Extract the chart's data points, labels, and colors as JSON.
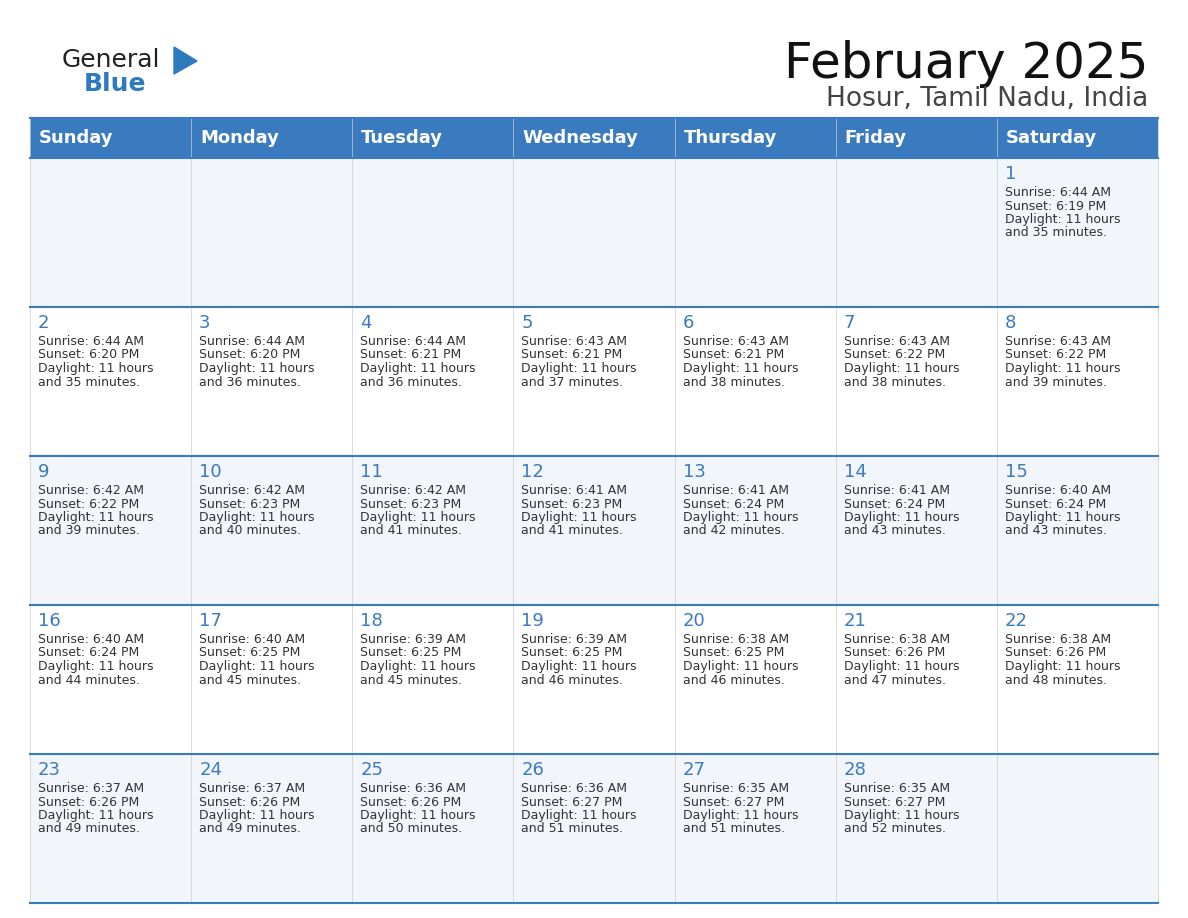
{
  "title": "February 2025",
  "subtitle": "Hosur, Tamil Nadu, India",
  "days_of_week": [
    "Sunday",
    "Monday",
    "Tuesday",
    "Wednesday",
    "Thursday",
    "Friday",
    "Saturday"
  ],
  "header_bg": "#3a7abf",
  "header_text_color": "#ffffff",
  "border_color": "#3a7abf",
  "day_number_color": "#3a7abf",
  "text_color": "#333333",
  "logo_general_color": "#222222",
  "logo_blue_color": "#2e7abf",
  "calendar_data": [
    [
      null,
      null,
      null,
      null,
      null,
      null,
      {
        "day": 1,
        "sunrise": "6:44 AM",
        "sunset": "6:19 PM",
        "daylight_line1": "11 hours",
        "daylight_line2": "and 35 minutes."
      }
    ],
    [
      {
        "day": 2,
        "sunrise": "6:44 AM",
        "sunset": "6:20 PM",
        "daylight_line1": "11 hours",
        "daylight_line2": "and 35 minutes."
      },
      {
        "day": 3,
        "sunrise": "6:44 AM",
        "sunset": "6:20 PM",
        "daylight_line1": "11 hours",
        "daylight_line2": "and 36 minutes."
      },
      {
        "day": 4,
        "sunrise": "6:44 AM",
        "sunset": "6:21 PM",
        "daylight_line1": "11 hours",
        "daylight_line2": "and 36 minutes."
      },
      {
        "day": 5,
        "sunrise": "6:43 AM",
        "sunset": "6:21 PM",
        "daylight_line1": "11 hours",
        "daylight_line2": "and 37 minutes."
      },
      {
        "day": 6,
        "sunrise": "6:43 AM",
        "sunset": "6:21 PM",
        "daylight_line1": "11 hours",
        "daylight_line2": "and 38 minutes."
      },
      {
        "day": 7,
        "sunrise": "6:43 AM",
        "sunset": "6:22 PM",
        "daylight_line1": "11 hours",
        "daylight_line2": "and 38 minutes."
      },
      {
        "day": 8,
        "sunrise": "6:43 AM",
        "sunset": "6:22 PM",
        "daylight_line1": "11 hours",
        "daylight_line2": "and 39 minutes."
      }
    ],
    [
      {
        "day": 9,
        "sunrise": "6:42 AM",
        "sunset": "6:22 PM",
        "daylight_line1": "11 hours",
        "daylight_line2": "and 39 minutes."
      },
      {
        "day": 10,
        "sunrise": "6:42 AM",
        "sunset": "6:23 PM",
        "daylight_line1": "11 hours",
        "daylight_line2": "and 40 minutes."
      },
      {
        "day": 11,
        "sunrise": "6:42 AM",
        "sunset": "6:23 PM",
        "daylight_line1": "11 hours",
        "daylight_line2": "and 41 minutes."
      },
      {
        "day": 12,
        "sunrise": "6:41 AM",
        "sunset": "6:23 PM",
        "daylight_line1": "11 hours",
        "daylight_line2": "and 41 minutes."
      },
      {
        "day": 13,
        "sunrise": "6:41 AM",
        "sunset": "6:24 PM",
        "daylight_line1": "11 hours",
        "daylight_line2": "and 42 minutes."
      },
      {
        "day": 14,
        "sunrise": "6:41 AM",
        "sunset": "6:24 PM",
        "daylight_line1": "11 hours",
        "daylight_line2": "and 43 minutes."
      },
      {
        "day": 15,
        "sunrise": "6:40 AM",
        "sunset": "6:24 PM",
        "daylight_line1": "11 hours",
        "daylight_line2": "and 43 minutes."
      }
    ],
    [
      {
        "day": 16,
        "sunrise": "6:40 AM",
        "sunset": "6:24 PM",
        "daylight_line1": "11 hours",
        "daylight_line2": "and 44 minutes."
      },
      {
        "day": 17,
        "sunrise": "6:40 AM",
        "sunset": "6:25 PM",
        "daylight_line1": "11 hours",
        "daylight_line2": "and 45 minutes."
      },
      {
        "day": 18,
        "sunrise": "6:39 AM",
        "sunset": "6:25 PM",
        "daylight_line1": "11 hours",
        "daylight_line2": "and 45 minutes."
      },
      {
        "day": 19,
        "sunrise": "6:39 AM",
        "sunset": "6:25 PM",
        "daylight_line1": "11 hours",
        "daylight_line2": "and 46 minutes."
      },
      {
        "day": 20,
        "sunrise": "6:38 AM",
        "sunset": "6:25 PM",
        "daylight_line1": "11 hours",
        "daylight_line2": "and 46 minutes."
      },
      {
        "day": 21,
        "sunrise": "6:38 AM",
        "sunset": "6:26 PM",
        "daylight_line1": "11 hours",
        "daylight_line2": "and 47 minutes."
      },
      {
        "day": 22,
        "sunrise": "6:38 AM",
        "sunset": "6:26 PM",
        "daylight_line1": "11 hours",
        "daylight_line2": "and 48 minutes."
      }
    ],
    [
      {
        "day": 23,
        "sunrise": "6:37 AM",
        "sunset": "6:26 PM",
        "daylight_line1": "11 hours",
        "daylight_line2": "and 49 minutes."
      },
      {
        "day": 24,
        "sunrise": "6:37 AM",
        "sunset": "6:26 PM",
        "daylight_line1": "11 hours",
        "daylight_line2": "and 49 minutes."
      },
      {
        "day": 25,
        "sunrise": "6:36 AM",
        "sunset": "6:26 PM",
        "daylight_line1": "11 hours",
        "daylight_line2": "and 50 minutes."
      },
      {
        "day": 26,
        "sunrise": "6:36 AM",
        "sunset": "6:27 PM",
        "daylight_line1": "11 hours",
        "daylight_line2": "and 51 minutes."
      },
      {
        "day": 27,
        "sunrise": "6:35 AM",
        "sunset": "6:27 PM",
        "daylight_line1": "11 hours",
        "daylight_line2": "and 51 minutes."
      },
      {
        "day": 28,
        "sunrise": "6:35 AM",
        "sunset": "6:27 PM",
        "daylight_line1": "11 hours",
        "daylight_line2": "and 52 minutes."
      },
      null
    ]
  ]
}
